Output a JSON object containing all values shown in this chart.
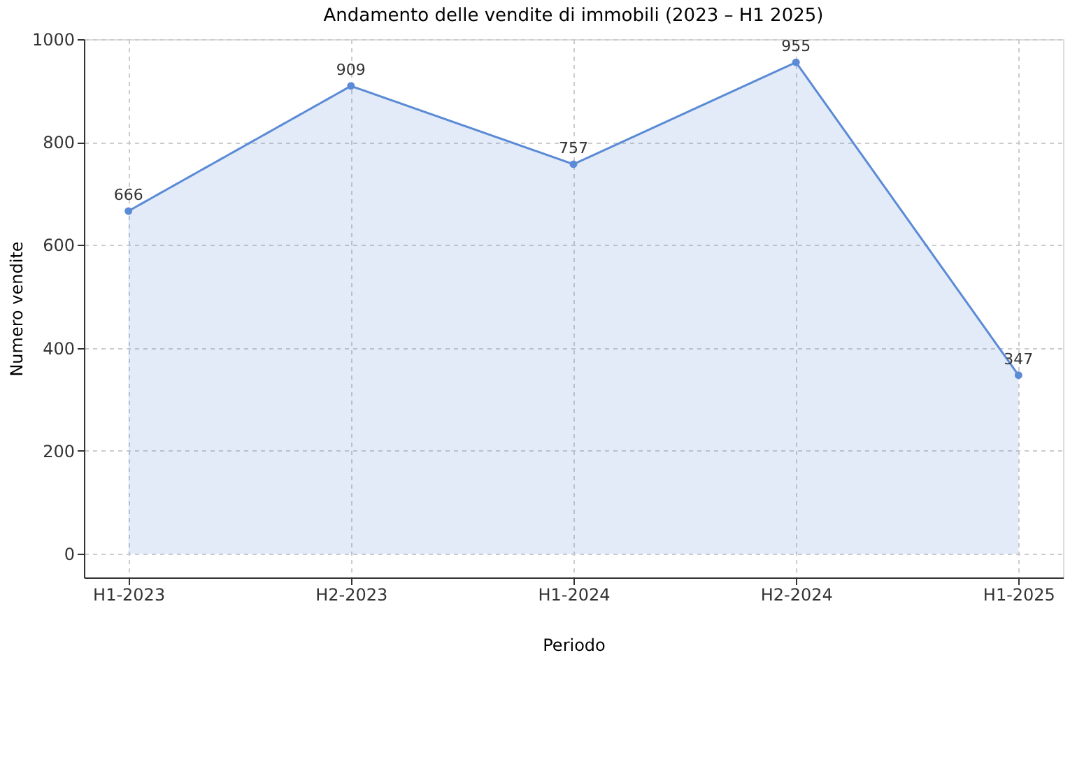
{
  "chart_data": {
    "type": "area",
    "title": "Andamento delle vendite di immobili (2023 – H1 2025)",
    "xlabel": "Periodo",
    "ylabel": "Numero vendite",
    "categories": [
      "H1-2023",
      "H2-2023",
      "H1-2024",
      "H2-2024",
      "H1-2025"
    ],
    "series": [
      {
        "color": "#5b8bd6",
        "values": [
          666,
          909,
          757,
          955,
          347
        ]
      }
    ],
    "ylim": [
      -46,
      1000
    ],
    "yticks": [
      0,
      200,
      400,
      600,
      800,
      1000
    ],
    "grid": true,
    "marker": "circle",
    "line_style": "solid",
    "data_labels": true
  }
}
